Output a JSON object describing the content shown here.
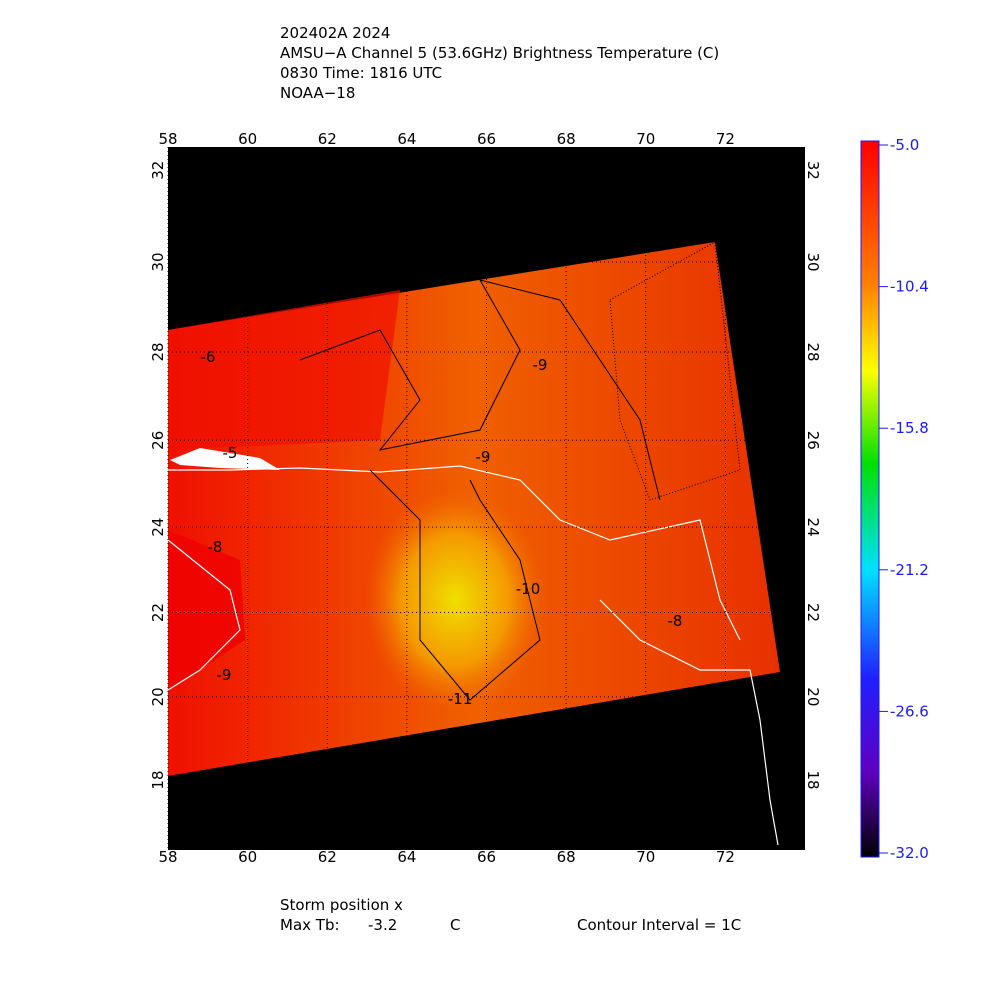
{
  "header": {
    "lines": [
      "202402A 2024",
      "AMSU−A Channel 5 (53.6GHz) Brightness Temperature (C)",
      "0830 Time: 1816 UTC",
      "NOAA−18"
    ]
  },
  "map": {
    "lon_range": [
      58,
      74
    ],
    "lat_range": [
      16.3,
      32.5
    ],
    "lon_ticks": [
      58,
      60,
      62,
      64,
      66,
      68,
      70,
      72
    ],
    "lat_ticks": [
      18,
      20,
      22,
      24,
      26,
      28,
      30,
      32
    ],
    "grid": true,
    "contour_labels": [
      "-9",
      "-8",
      "-10",
      "-11",
      "-9",
      "-9",
      "-8",
      "-6",
      "-5"
    ]
  },
  "colorbar": {
    "range": [
      -32,
      -5
    ],
    "ticks": [
      {
        "value": -5,
        "label": "-5.0"
      },
      {
        "value": -10.4,
        "label": "-10.4"
      },
      {
        "value": -15.8,
        "label": "-15.8"
      },
      {
        "value": -21.2,
        "label": "-21.2"
      },
      {
        "value": -26.6,
        "label": "-26.6"
      },
      {
        "value": -32,
        "label": "-32.0"
      }
    ]
  },
  "footer": {
    "storm": "Storm position x",
    "max_tb_label": "Max Tb:",
    "max_tb": -3.2,
    "max_tb_unit": "C",
    "contour_interval": "Contour Interval = 1C"
  }
}
